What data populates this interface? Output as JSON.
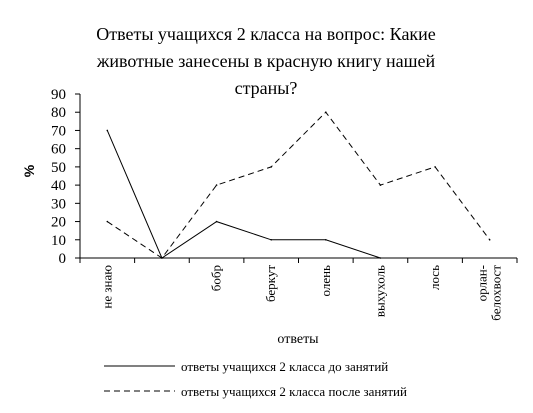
{
  "chart_data": {
    "type": "line",
    "title_lines": [
      "Ответы учащихся 2 класса на вопрос: Какие",
      "животные занесены в красную книгу нашей",
      "страны?"
    ],
    "xlabel": "ответы",
    "ylabel": "%",
    "ylim": [
      0,
      90
    ],
    "yticks": [
      0,
      10,
      20,
      30,
      40,
      50,
      60,
      70,
      80,
      90
    ],
    "categories": [
      [
        "не знаю"
      ],
      [
        ""
      ],
      [
        "бобр"
      ],
      [
        "беркут"
      ],
      [
        "олень"
      ],
      [
        "выхухоль"
      ],
      [
        "лось"
      ],
      [
        "орлан-",
        "белохвост"
      ]
    ],
    "series": [
      {
        "name": "ответы учащихся 2 класса до занятий",
        "values": [
          70,
          0,
          20,
          10,
          10,
          0,
          null,
          null
        ],
        "dash": "solid",
        "color": "#000000"
      },
      {
        "name": "ответы учащихся 2 класса после занятий",
        "values": [
          20,
          0,
          40,
          50,
          80,
          40,
          50,
          10
        ],
        "dash": "dashed",
        "color": "#000000"
      }
    ],
    "grid": false,
    "legend_position": "bottom"
  }
}
